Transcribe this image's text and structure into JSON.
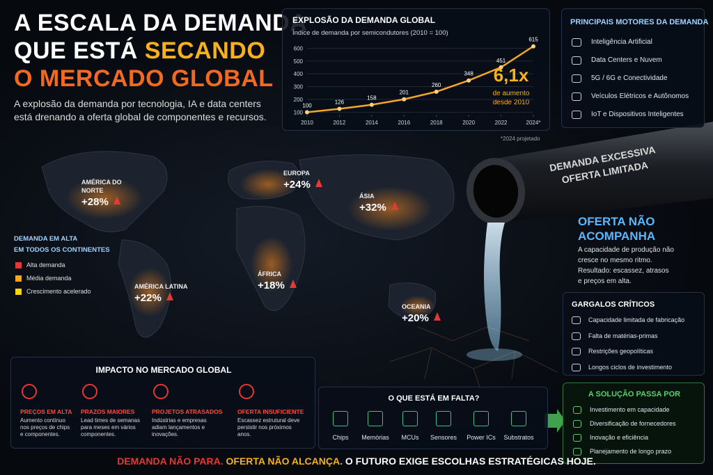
{
  "header": {
    "title_line1": "A ESCALA DA DEMANDA",
    "title_line2": "QUE ESTÁ",
    "title_highlight": "SECANDO",
    "title_line3": "O MERCADO GLOBAL",
    "subtitle": "A explosão da demanda por tecnologia, IA e data centers está drenando a oferta global de componentes e recursos."
  },
  "chart_data": {
    "type": "line",
    "title": "EXPLOSÃO DA DEMANDA GLOBAL",
    "subtitle": "Índice de demanda por semicondutores (2010 = 100)",
    "x": [
      2010,
      2012,
      2014,
      2016,
      2018,
      2020,
      2022,
      2024
    ],
    "values": [
      100,
      126,
      158,
      201,
      260,
      348,
      451,
      615
    ],
    "color": "#f5a623",
    "xlim": [
      2010,
      2024
    ],
    "xticks": [
      2010,
      2012,
      2014,
      2016,
      2018,
      2020,
      2022,
      {
        "value": 2024,
        "label": "2024*"
      }
    ],
    "ylim": [
      80,
      640
    ],
    "yticks": [
      100,
      200,
      300,
      400,
      500,
      600
    ],
    "grid": true,
    "annotation": "6,1x",
    "annotation_lines": [
      "de aumento",
      "desde 2010"
    ],
    "note": "*2024 projetado"
  },
  "drivers": {
    "title": "PRINCIPAIS MOTORES DA DEMANDA",
    "items": [
      "Inteligência Artificial",
      "Data Centers e Nuvem",
      "5G / 6G e Conectividade",
      "Veículos Elétricos e Autônomos",
      "IoT e Dispositivos Inteligentes"
    ]
  },
  "map": {
    "regions": [
      {
        "name": [
          "AMÉRICA DO",
          "NORTE"
        ],
        "value": "+28%"
      },
      {
        "name": [
          "EUROPA"
        ],
        "value": "+24%"
      },
      {
        "name": [
          "ÁSIA"
        ],
        "value": "+32%"
      },
      {
        "name": [
          "AMÉRICA LATINA"
        ],
        "value": "+22%"
      },
      {
        "name": [
          "ÁFRICA"
        ],
        "value": "+18%"
      },
      {
        "name": [
          "OCEANIA"
        ],
        "value": "+20%"
      }
    ],
    "legend_title": [
      "DEMANDA EM ALTA",
      "EM TODOS OS CONTINENTES"
    ],
    "legend": [
      "Alta demanda",
      "Média demanda",
      "Crescimento acelerado"
    ]
  },
  "pipe": {
    "lines": [
      "DEMANDA EXCESSIVA",
      "OFERTA LIMITADA"
    ]
  },
  "supply": {
    "title": [
      "OFERTA NÃO",
      "ACOMPANHA"
    ],
    "text": [
      "A capacidade de produção não",
      "cresce no mesmo ritmo.",
      "Resultado: escassez, atrasos",
      "e preços em alta."
    ]
  },
  "bottlenecks": {
    "title": "GARGALOS CRÍTICOS",
    "items": [
      "Capacidade limitada de fabricação",
      "Falta de matérias-primas",
      "Restrições geopolíticas",
      "Longos ciclos de investimento"
    ]
  },
  "impact": {
    "title": "IMPACTO NO MERCADO GLOBAL",
    "items": [
      {
        "title": "PREÇOS EM ALTA",
        "text": [
          "Aumento contínuo",
          "nos preços de chips",
          "e componentes."
        ]
      },
      {
        "title": "PRAZOS MAIORES",
        "text": [
          "Lead times de semanas",
          "para meses em vários",
          "componentes."
        ]
      },
      {
        "title": "PROJETOS ATRASADOS",
        "text": [
          "Indústrias e empresas",
          "adiam lançamentos e",
          "inovações."
        ]
      },
      {
        "title": "OFERTA INSUFICIENTE",
        "text": [
          "Escassez estrutural deve",
          "persistir nos próximos",
          "anos."
        ]
      }
    ]
  },
  "shortage": {
    "title": "O QUE ESTÁ EM FALTA?",
    "items": [
      "Chips",
      "Memórias",
      "MCUs",
      "Sensores",
      "Power ICs",
      "Substratos"
    ]
  },
  "solution": {
    "title": "A SOLUÇÃO PASSA POR",
    "items": [
      "Investimento em capacidade",
      "Diversificação de fornecedores",
      "Inovação e eficiência",
      "Planejamento de longo prazo"
    ]
  },
  "footer": [
    "DEMANDA NÃO PARA.",
    "OFERTA NÃO ALCANÇA.",
    "O FUTURO EXIGE ESCOLHAS ESTRATÉGICAS HOJE."
  ]
}
